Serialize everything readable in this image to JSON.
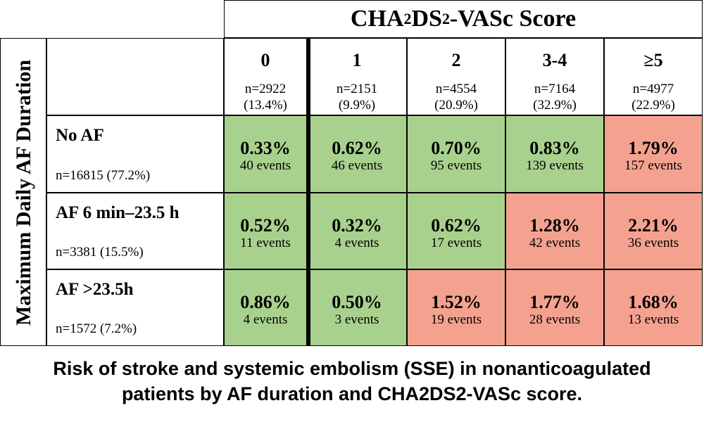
{
  "chart_data": {
    "type": "heatmap",
    "column_header": {
      "prefix": "CHA",
      "sub1": "2",
      "mid": "DS",
      "sub2": "2",
      "suffix": "-VASc Score"
    },
    "row_header": "Maximum Daily AF Duration",
    "columns": [
      {
        "label": "0",
        "n": "n=2922",
        "pct": "(13.4%)"
      },
      {
        "label": "1",
        "n": "n=2151",
        "pct": "(9.9%)"
      },
      {
        "label": "2",
        "n": "n=4554",
        "pct": "(20.9%)"
      },
      {
        "label": "3-4",
        "n": "n=7164",
        "pct": "(32.9%)"
      },
      {
        "label": "≥5",
        "n": "n=4977",
        "pct": "(22.9%)"
      }
    ],
    "rows": [
      {
        "label": "No AF",
        "n": "n=16815 (77.2%)",
        "cells": [
          {
            "rate": "0.33%",
            "events": "40 events",
            "risk": "low"
          },
          {
            "rate": "0.62%",
            "events": "46 events",
            "risk": "low"
          },
          {
            "rate": "0.70%",
            "events": "95 events",
            "risk": "low"
          },
          {
            "rate": "0.83%",
            "events": "139 events",
            "risk": "low"
          },
          {
            "rate": "1.79%",
            "events": "157 events",
            "risk": "high"
          }
        ]
      },
      {
        "label": "AF 6 min–23.5 h",
        "n": "n=3381 (15.5%)",
        "cells": [
          {
            "rate": "0.52%",
            "events": "11 events",
            "risk": "low"
          },
          {
            "rate": "0.32%",
            "events": "4 events",
            "risk": "low"
          },
          {
            "rate": "0.62%",
            "events": "17 events",
            "risk": "low"
          },
          {
            "rate": "1.28%",
            "events": "42 events",
            "risk": "high"
          },
          {
            "rate": "2.21%",
            "events": "36 events",
            "risk": "high"
          }
        ]
      },
      {
        "label": "AF >23.5h",
        "n": "n=1572 (7.2%)",
        "cells": [
          {
            "rate": "0.86%",
            "events": "4 events",
            "risk": "low"
          },
          {
            "rate": "0.50%",
            "events": "3 events",
            "risk": "low"
          },
          {
            "rate": "1.52%",
            "events": "19 events",
            "risk": "high"
          },
          {
            "rate": "1.77%",
            "events": "28 events",
            "risk": "high"
          },
          {
            "rate": "1.68%",
            "events": "13 events",
            "risk": "high"
          }
        ]
      }
    ],
    "colors": {
      "low": "#a9d18e",
      "high": "#f4a28f"
    }
  },
  "caption": {
    "line1": "Risk of stroke and systemic embolism (SSE) in nonanticoagulated",
    "line2": "patients by AF duration and CHA2DS2-VASc score."
  }
}
